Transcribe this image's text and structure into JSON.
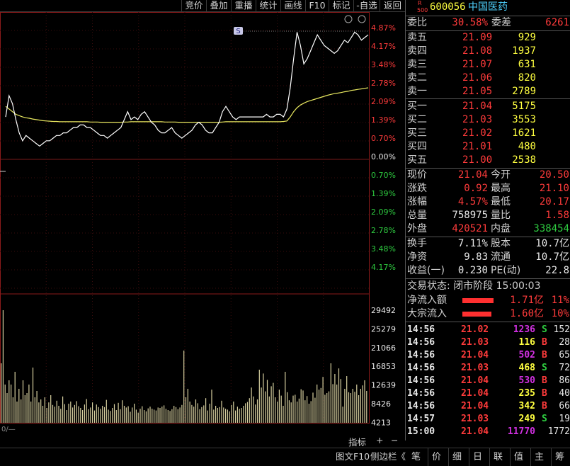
{
  "toolbar": {
    "buttons": [
      "竞价",
      "叠加",
      "重播",
      "统计",
      "画线",
      "F10",
      "-自选",
      "返回"
    ]
  },
  "chart": {
    "sym_badge": "S",
    "price_axis_pct": [
      "4.87%",
      "4.17%",
      "3.48%",
      "2.78%",
      "2.09%",
      "1.39%",
      "0.70%",
      "0.00%",
      "0.70%",
      "1.39%",
      "2.09%",
      "2.78%",
      "3.48%",
      "4.17%"
    ],
    "volume_axis": [
      "29492",
      "25279",
      "21066",
      "16853",
      "12639",
      "8426",
      "4213"
    ],
    "zero_label": "0/—",
    "indicator_btn": "指标",
    "plus_btn": "+",
    "minus_btn": "−",
    "colors": {
      "up": "#ff3b3b",
      "down": "#2ecc40",
      "price_line": "#ffffff",
      "avg_line": "#e8e860",
      "volume": "#d8d0a0"
    }
  },
  "chart_data": {
    "type": "line",
    "price_pct": [
      1.6,
      2.4,
      2.1,
      1.5,
      1.0,
      0.7,
      0.9,
      0.8,
      0.7,
      0.6,
      0.5,
      0.6,
      0.7,
      0.7,
      0.8,
      0.9,
      0.9,
      1.0,
      1.0,
      1.1,
      1.2,
      1.2,
      1.3,
      1.3,
      1.2,
      1.2,
      1.1,
      1.0,
      0.9,
      0.9,
      0.8,
      0.9,
      1.0,
      1.1,
      1.2,
      1.5,
      1.8,
      1.5,
      1.6,
      1.5,
      1.7,
      1.8,
      1.6,
      1.4,
      1.3,
      1.1,
      1.0,
      1.0,
      1.1,
      1.2,
      1.0,
      0.9,
      0.8,
      0.9,
      1.0,
      1.1,
      1.3,
      1.4,
      1.3,
      1.1,
      1.0,
      1.0,
      1.2,
      1.4,
      1.8,
      2.0,
      1.8,
      1.6,
      1.5,
      1.6,
      1.6,
      1.6,
      1.6,
      1.6,
      1.6,
      1.6,
      1.6,
      1.7,
      1.6,
      1.6,
      1.7,
      1.7,
      1.6,
      1.9,
      2.7,
      3.8,
      4.8,
      4.3,
      3.6,
      3.8,
      4.1,
      4.4,
      4.7,
      4.5,
      4.3,
      4.2,
      4.1,
      4.0,
      4.1,
      4.3,
      4.5,
      4.4,
      4.6,
      4.8,
      4.7,
      4.5,
      4.6,
      4.7
    ],
    "avg_pct": [
      2.0,
      1.9,
      1.8,
      1.7,
      1.65,
      1.6,
      1.57,
      1.55,
      1.52,
      1.5,
      1.48,
      1.46,
      1.45,
      1.44,
      1.43,
      1.43,
      1.42,
      1.42,
      1.42,
      1.42,
      1.42,
      1.42,
      1.42,
      1.42,
      1.42,
      1.41,
      1.41,
      1.41,
      1.4,
      1.4,
      1.4,
      1.4,
      1.4,
      1.4,
      1.4,
      1.41,
      1.41,
      1.42,
      1.42,
      1.42,
      1.42,
      1.42,
      1.42,
      1.42,
      1.42,
      1.42,
      1.42,
      1.41,
      1.41,
      1.41,
      1.41,
      1.4,
      1.4,
      1.4,
      1.4,
      1.4,
      1.4,
      1.4,
      1.4,
      1.4,
      1.4,
      1.4,
      1.4,
      1.4,
      1.41,
      1.42,
      1.42,
      1.42,
      1.42,
      1.42,
      1.42,
      1.42,
      1.42,
      1.42,
      1.42,
      1.42,
      1.42,
      1.42,
      1.42,
      1.42,
      1.42,
      1.42,
      1.43,
      1.45,
      1.6,
      1.8,
      1.95,
      2.05,
      2.12,
      2.18,
      2.22,
      2.26,
      2.3,
      2.34,
      2.38,
      2.42,
      2.45,
      2.48,
      2.5,
      2.52,
      2.55,
      2.57,
      2.6,
      2.62,
      2.64,
      2.66,
      2.68,
      2.7
    ],
    "volume": [
      14000,
      26500,
      9000,
      7000,
      10000,
      9000,
      6000,
      12000,
      5000,
      8000,
      5500,
      10000,
      6500,
      7000,
      9000,
      5000,
      13000,
      6000,
      7500,
      4800,
      5500,
      4000,
      6000,
      3500,
      4800,
      6500,
      4200,
      3800,
      5200,
      4000,
      3300,
      6200,
      4400,
      3000,
      4500,
      5000,
      3600,
      4200,
      5100,
      3900,
      3500,
      3000,
      4300,
      5600,
      3200,
      3600,
      4800,
      2900,
      4300,
      3700,
      3300,
      4000,
      3700,
      5400,
      3100,
      2800,
      3500,
      4400,
      3000,
      4700,
      3200,
      5300,
      4000,
      3600,
      3900,
      2600,
      3600,
      4500,
      3100,
      2400,
      3300,
      3900,
      3000,
      2700,
      3400,
      3800,
      3300,
      3100,
      2900,
      3600,
      3500,
      3800,
      4100,
      3300,
      3000,
      2800,
      3200,
      4000,
      3700,
      3200,
      3600,
      4200,
      17000,
      6000,
      8000,
      5000,
      4200,
      3800,
      5500,
      4600,
      3200,
      3700,
      4100,
      5800,
      2900,
      4500,
      7800,
      3100,
      4000,
      3500,
      3700,
      5200,
      3600,
      3300,
      3100,
      2700,
      4200,
      5000,
      2900,
      3800,
      3300,
      3500,
      4000,
      4600,
      4900,
      5800,
      8300,
      6200,
      4300,
      5500,
      12500,
      8300,
      11600,
      7400,
      10100,
      6200,
      8600,
      9400,
      6000,
      5000,
      7800,
      6400,
      4000,
      12000,
      7200,
      5300,
      4800,
      6400,
      6600,
      5000,
      5700,
      7900,
      7600,
      5300,
      6300,
      4500,
      5100,
      7100,
      5900,
      9000,
      7800,
      8200,
      10800,
      6600,
      7000,
      7400,
      14000,
      9100,
      11500,
      9000,
      12800,
      10300,
      3800,
      8000,
      11000,
      7200,
      7000,
      8000,
      7300,
      9000,
      6500,
      8000,
      8800,
      10000,
      7500
    ],
    "xlabel": "",
    "ylabel": ""
  },
  "quote": {
    "badge_r": "R",
    "badge_num": "500",
    "code": "600056",
    "name": "中国医药",
    "weibi_label": "委比",
    "weibi_value": "30.58%",
    "weicha_label": "委差",
    "weicha_value": "6261",
    "asks": [
      {
        "label": "卖五",
        "price": "21.09",
        "vol": "929"
      },
      {
        "label": "卖四",
        "price": "21.08",
        "vol": "1937"
      },
      {
        "label": "卖三",
        "price": "21.07",
        "vol": "631"
      },
      {
        "label": "卖二",
        "price": "21.06",
        "vol": "820"
      },
      {
        "label": "卖一",
        "price": "21.05",
        "vol": "2789"
      }
    ],
    "bids": [
      {
        "label": "买一",
        "price": "21.04",
        "vol": "5175"
      },
      {
        "label": "买二",
        "price": "21.03",
        "vol": "3553"
      },
      {
        "label": "买三",
        "price": "21.02",
        "vol": "1621"
      },
      {
        "label": "买四",
        "price": "21.01",
        "vol": "480"
      },
      {
        "label": "买五",
        "price": "21.00",
        "vol": "2538"
      }
    ],
    "stats": [
      {
        "l1": "现价",
        "v1": "21.04",
        "c1": "red",
        "l2": "今开",
        "v2": "20.50",
        "c2": "red"
      },
      {
        "l1": "涨跌",
        "v1": "0.92",
        "c1": "red",
        "l2": "最高",
        "v2": "21.10",
        "c2": "red"
      },
      {
        "l1": "涨幅",
        "v1": "4.57%",
        "c1": "red",
        "l2": "最低",
        "v2": "20.17",
        "c2": "red"
      },
      {
        "l1": "总量",
        "v1": "758975",
        "c1": "white",
        "l2": "量比",
        "v2": "1.58",
        "c2": "red"
      },
      {
        "l1": "外盘",
        "v1": "420521",
        "c1": "red",
        "l2": "内盘",
        "v2": "338454",
        "c2": "green"
      }
    ],
    "stats2": [
      {
        "l1": "换手",
        "v1": "7.11%",
        "l2": "股本",
        "v2": "10.7亿"
      },
      {
        "l1": "净资",
        "v1": "9.83",
        "l2": "流通",
        "v2": "10.7亿"
      },
      {
        "l1": "收益(一)",
        "v1": "0.230",
        "l2": "PE(动)",
        "v2": "22.8"
      }
    ],
    "trade_status": "交易状态: 闭市阶段 15:00:03",
    "flows": [
      {
        "label": "净流入额",
        "value": "1.71亿",
        "pct": "11%",
        "bar": 0.8
      },
      {
        "label": "大宗流入",
        "value": "1.60亿",
        "pct": "10%",
        "bar": 0.75
      }
    ],
    "ticks": [
      {
        "time": "14:56",
        "price": "21.02",
        "vol": "1236",
        "vc": "purple",
        "side": "S",
        "n": "152"
      },
      {
        "time": "14:56",
        "price": "21.03",
        "vol": "116",
        "vc": "yellow",
        "side": "B",
        "n": "28"
      },
      {
        "time": "14:56",
        "price": "21.04",
        "vol": "502",
        "vc": "purple",
        "side": "B",
        "n": "65"
      },
      {
        "time": "14:56",
        "price": "21.03",
        "vol": "468",
        "vc": "yellow",
        "side": "S",
        "n": "72"
      },
      {
        "time": "14:56",
        "price": "21.04",
        "vol": "530",
        "vc": "purple",
        "side": "B",
        "n": "86"
      },
      {
        "time": "14:56",
        "price": "21.04",
        "vol": "235",
        "vc": "yellow",
        "side": "B",
        "n": "40"
      },
      {
        "time": "14:56",
        "price": "21.04",
        "vol": "342",
        "vc": "yellow",
        "side": "B",
        "n": "66"
      },
      {
        "time": "14:57",
        "price": "21.03",
        "vol": "249",
        "vc": "yellow",
        "side": "S",
        "n": "19"
      },
      {
        "time": "15:00",
        "price": "21.04",
        "vol": "11770",
        "vc": "purple",
        "side": "",
        "n": "1772"
      }
    ]
  },
  "bottom": {
    "f10_label": "图文F10",
    "sidebar_label": "侧边栏《",
    "tabs": [
      "笔",
      "价",
      "细",
      "日",
      "联",
      "值",
      "主",
      "筹"
    ]
  }
}
